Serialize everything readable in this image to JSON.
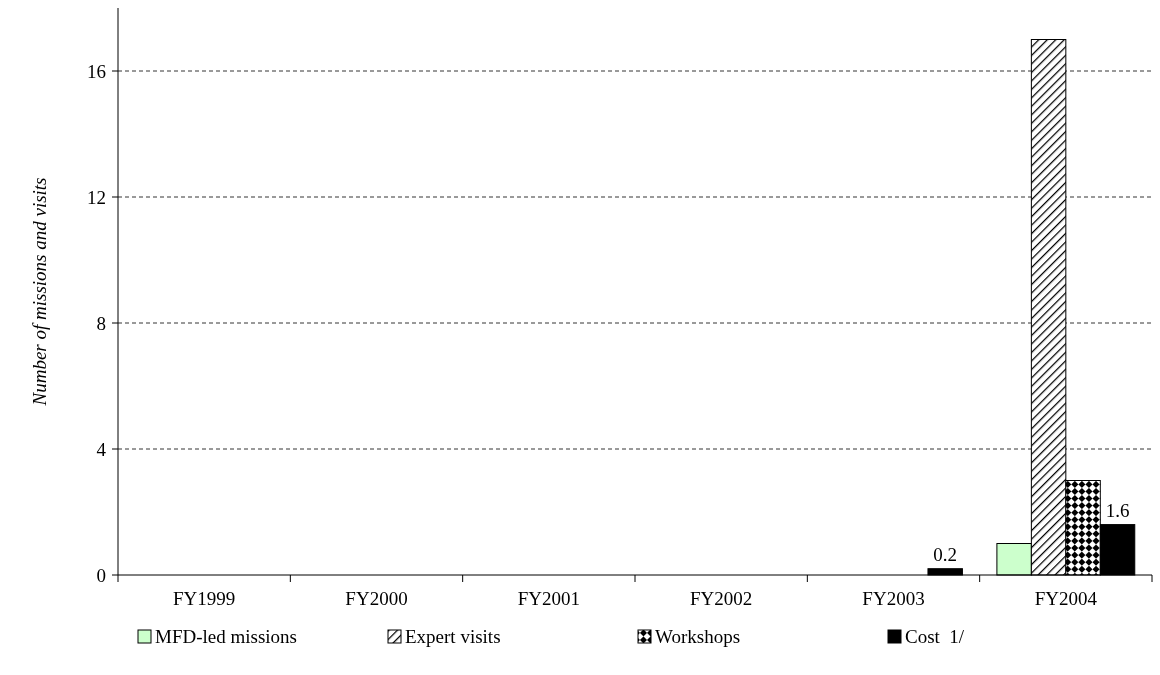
{
  "chart_data": {
    "type": "bar",
    "ylabel": "Number of missions and visits",
    "categories": [
      "FY1999",
      "FY2000",
      "FY2001",
      "FY2002",
      "FY2003",
      "FY2004"
    ],
    "series": [
      {
        "name": "MFD-led missions",
        "color": "#ccffcc",
        "values": [
          0,
          0,
          0,
          0,
          0,
          1
        ]
      },
      {
        "name": "Expert visits",
        "color": "#000000",
        "values": [
          0,
          0,
          0,
          0,
          0,
          17
        ]
      },
      {
        "name": "Workshops",
        "color": "#000000",
        "values": [
          0,
          0,
          0,
          0,
          0,
          3
        ]
      },
      {
        "name": "Cost  1/",
        "color": "#000000",
        "values": [
          0,
          0,
          0,
          0,
          0.2,
          1.6
        ],
        "value_labels": [
          null,
          null,
          null,
          null,
          "0.2",
          "1.6"
        ]
      }
    ],
    "ylim": [
      0,
      18
    ],
    "yticks": [
      0,
      4,
      8,
      12,
      16
    ],
    "grid": "y",
    "legend": "bottom"
  }
}
